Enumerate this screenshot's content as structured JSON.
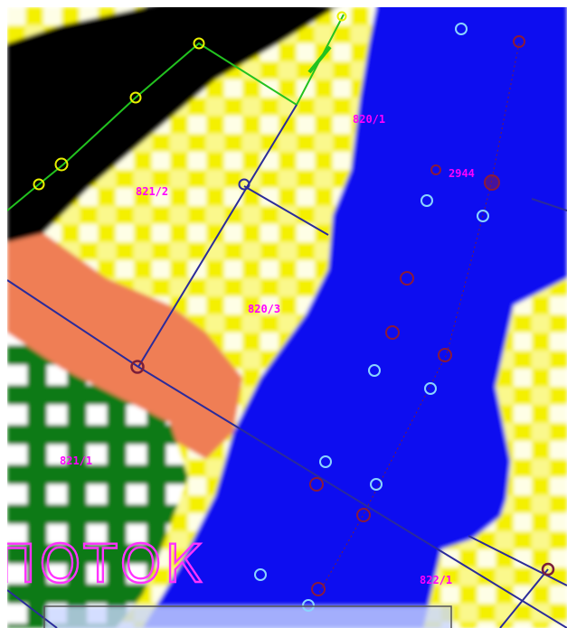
{
  "map": {
    "parcel_labels": [
      {
        "id": "p1",
        "text": "820/1"
      },
      {
        "id": "p2",
        "text": "821/2"
      },
      {
        "id": "p3",
        "text": "2944"
      },
      {
        "id": "p4",
        "text": "820/3"
      },
      {
        "id": "p5",
        "text": "821/1"
      },
      {
        "id": "p6",
        "text": "822/1"
      }
    ],
    "area_label": "ПОТОК",
    "colors": {
      "water": "#0a10f0",
      "yellow": "#f4f000",
      "black": "#000000",
      "orange": "#ef7e55",
      "green": "#0b7a12",
      "white": "#ffffff",
      "boundary": "#2b2b9a",
      "green_boundary": "#22c21f",
      "magenta": "#ff00ff"
    }
  }
}
